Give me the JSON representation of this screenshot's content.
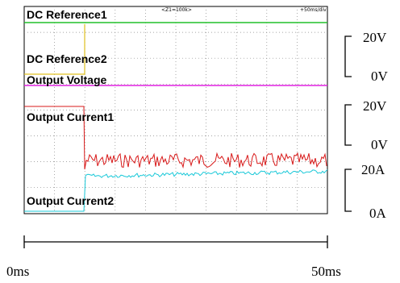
{
  "screen": {
    "zoom": "<Z1=100k>",
    "timebase": "+50ms/div"
  },
  "traces": [
    "DC Reference1",
    "DC Reference2",
    "Output Voltage",
    "Output Current1",
    "Output Current2"
  ],
  "scales": [
    {
      "top": "20V",
      "bottom": "0V"
    },
    {
      "top": "20V",
      "bottom": "0V"
    },
    {
      "top": "20A",
      "bottom": "0A"
    }
  ],
  "time_axis": {
    "start": "0ms",
    "end": "50ms"
  }
}
